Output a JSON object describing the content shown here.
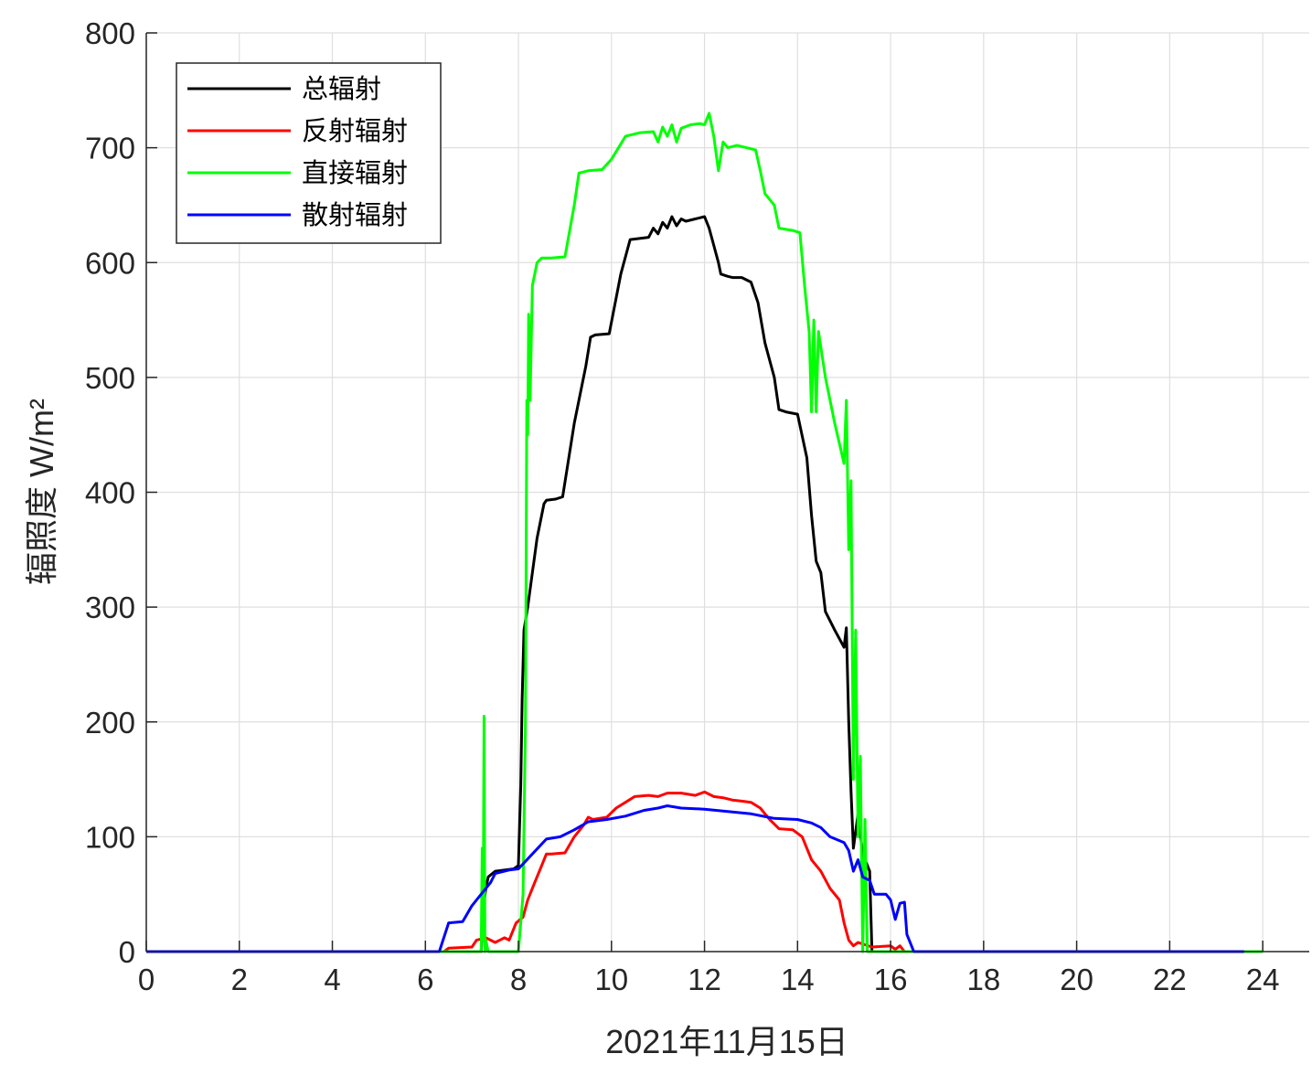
{
  "chart_data": {
    "type": "line",
    "title": "",
    "xlabel": "2021年11月15日",
    "ylabel": "辐照度 W/m²",
    "xlim": [
      0,
      25
    ],
    "ylim": [
      0,
      800
    ],
    "xticks": [
      0,
      2,
      4,
      6,
      8,
      10,
      12,
      14,
      16,
      18,
      20,
      22,
      24
    ],
    "yticks": [
      0,
      100,
      200,
      300,
      400,
      500,
      600,
      700,
      800
    ],
    "grid": true,
    "legend_position": "top-left",
    "series": [
      {
        "name": "总辐射",
        "color": "#000000",
        "points": [
          [
            0,
            0
          ],
          [
            6.3,
            0
          ],
          [
            7.2,
            0
          ],
          [
            7.25,
            40
          ],
          [
            7.3,
            55
          ],
          [
            7.35,
            65
          ],
          [
            7.5,
            70
          ],
          [
            7.9,
            72
          ],
          [
            8.0,
            75
          ],
          [
            8.05,
            145
          ],
          [
            8.08,
            220
          ],
          [
            8.12,
            280
          ],
          [
            8.2,
            300
          ],
          [
            8.4,
            360
          ],
          [
            8.55,
            390
          ],
          [
            8.6,
            393
          ],
          [
            8.8,
            394
          ],
          [
            8.95,
            396
          ],
          [
            9.2,
            460
          ],
          [
            9.45,
            510
          ],
          [
            9.55,
            535
          ],
          [
            9.65,
            537
          ],
          [
            9.95,
            538
          ],
          [
            10.2,
            590
          ],
          [
            10.4,
            620
          ],
          [
            10.6,
            621
          ],
          [
            10.8,
            622
          ],
          [
            10.9,
            630
          ],
          [
            11.0,
            625
          ],
          [
            11.1,
            635
          ],
          [
            11.2,
            630
          ],
          [
            11.3,
            640
          ],
          [
            11.4,
            632
          ],
          [
            11.5,
            638
          ],
          [
            11.6,
            636
          ],
          [
            11.8,
            638
          ],
          [
            12.0,
            640
          ],
          [
            12.1,
            630
          ],
          [
            12.2,
            615
          ],
          [
            12.3,
            600
          ],
          [
            12.35,
            590
          ],
          [
            12.5,
            588
          ],
          [
            12.6,
            587
          ],
          [
            12.8,
            587
          ],
          [
            13.0,
            583
          ],
          [
            13.15,
            565
          ],
          [
            13.3,
            530
          ],
          [
            13.5,
            500
          ],
          [
            13.6,
            472
          ],
          [
            13.75,
            470
          ],
          [
            14.0,
            468
          ],
          [
            14.2,
            430
          ],
          [
            14.3,
            380
          ],
          [
            14.4,
            340
          ],
          [
            14.5,
            330
          ],
          [
            14.6,
            296
          ],
          [
            14.8,
            280
          ],
          [
            15.0,
            265
          ],
          [
            15.05,
            282
          ],
          [
            15.1,
            200
          ],
          [
            15.15,
            140
          ],
          [
            15.2,
            90
          ],
          [
            15.3,
            120
          ],
          [
            15.4,
            85
          ],
          [
            15.55,
            70
          ],
          [
            15.6,
            0
          ],
          [
            24,
            0
          ]
        ]
      },
      {
        "name": "反射辐射",
        "color": "#ff0000",
        "points": [
          [
            0,
            0
          ],
          [
            6.4,
            0
          ],
          [
            6.5,
            3
          ],
          [
            7.0,
            4
          ],
          [
            7.1,
            10
          ],
          [
            7.3,
            12
          ],
          [
            7.5,
            8
          ],
          [
            7.6,
            10
          ],
          [
            7.7,
            12
          ],
          [
            7.8,
            10
          ],
          [
            7.95,
            25
          ],
          [
            8.1,
            30
          ],
          [
            8.2,
            45
          ],
          [
            8.35,
            60
          ],
          [
            8.5,
            75
          ],
          [
            8.6,
            85
          ],
          [
            8.7,
            85
          ],
          [
            9.0,
            86
          ],
          [
            9.2,
            100
          ],
          [
            9.4,
            110
          ],
          [
            9.5,
            117
          ],
          [
            9.6,
            115
          ],
          [
            9.9,
            117
          ],
          [
            10.1,
            125
          ],
          [
            10.3,
            130
          ],
          [
            10.5,
            135
          ],
          [
            10.8,
            136
          ],
          [
            11.0,
            135
          ],
          [
            11.2,
            138
          ],
          [
            11.5,
            138
          ],
          [
            11.8,
            136
          ],
          [
            12.0,
            139
          ],
          [
            12.2,
            135
          ],
          [
            12.4,
            134
          ],
          [
            12.6,
            132
          ],
          [
            12.8,
            131
          ],
          [
            13.0,
            130
          ],
          [
            13.2,
            125
          ],
          [
            13.4,
            115
          ],
          [
            13.6,
            107
          ],
          [
            13.9,
            106
          ],
          [
            14.1,
            100
          ],
          [
            14.3,
            80
          ],
          [
            14.5,
            70
          ],
          [
            14.7,
            55
          ],
          [
            14.9,
            45
          ],
          [
            15.0,
            25
          ],
          [
            15.1,
            10
          ],
          [
            15.2,
            5
          ],
          [
            15.3,
            8
          ],
          [
            15.6,
            4
          ],
          [
            16.0,
            5
          ],
          [
            16.1,
            2
          ],
          [
            16.2,
            5
          ],
          [
            16.3,
            0
          ],
          [
            24,
            0
          ]
        ]
      },
      {
        "name": "直接辐射",
        "color": "#00ff00",
        "points": [
          [
            0,
            0
          ],
          [
            7.2,
            0
          ],
          [
            7.22,
            90
          ],
          [
            7.24,
            10
          ],
          [
            7.26,
            205
          ],
          [
            7.28,
            0
          ],
          [
            7.3,
            10
          ],
          [
            7.35,
            0
          ],
          [
            8.0,
            0
          ],
          [
            8.1,
            50
          ],
          [
            8.15,
            200
          ],
          [
            8.18,
            480
          ],
          [
            8.2,
            450
          ],
          [
            8.22,
            555
          ],
          [
            8.25,
            480
          ],
          [
            8.3,
            580
          ],
          [
            8.4,
            600
          ],
          [
            8.5,
            604
          ],
          [
            8.7,
            604
          ],
          [
            9.0,
            605
          ],
          [
            9.2,
            650
          ],
          [
            9.3,
            678
          ],
          [
            9.5,
            680
          ],
          [
            9.8,
            681
          ],
          [
            10.0,
            690
          ],
          [
            10.3,
            710
          ],
          [
            10.6,
            713
          ],
          [
            10.9,
            714
          ],
          [
            11.0,
            705
          ],
          [
            11.1,
            718
          ],
          [
            11.2,
            710
          ],
          [
            11.3,
            720
          ],
          [
            11.4,
            705
          ],
          [
            11.5,
            717
          ],
          [
            11.7,
            720
          ],
          [
            11.9,
            721
          ],
          [
            12.0,
            720
          ],
          [
            12.1,
            730
          ],
          [
            12.2,
            710
          ],
          [
            12.3,
            680
          ],
          [
            12.4,
            705
          ],
          [
            12.5,
            700
          ],
          [
            12.7,
            702
          ],
          [
            12.9,
            700
          ],
          [
            13.1,
            698
          ],
          [
            13.2,
            680
          ],
          [
            13.3,
            660
          ],
          [
            13.5,
            650
          ],
          [
            13.6,
            630
          ],
          [
            13.9,
            628
          ],
          [
            14.05,
            626
          ],
          [
            14.15,
            580
          ],
          [
            14.25,
            540
          ],
          [
            14.3,
            470
          ],
          [
            14.35,
            550
          ],
          [
            14.4,
            470
          ],
          [
            14.45,
            540
          ],
          [
            14.6,
            500
          ],
          [
            14.8,
            460
          ],
          [
            15.0,
            425
          ],
          [
            15.05,
            480
          ],
          [
            15.1,
            350
          ],
          [
            15.15,
            410
          ],
          [
            15.2,
            150
          ],
          [
            15.25,
            280
          ],
          [
            15.3,
            100
          ],
          [
            15.35,
            170
          ],
          [
            15.4,
            0
          ],
          [
            15.45,
            115
          ],
          [
            15.5,
            0
          ],
          [
            24,
            0
          ]
        ]
      },
      {
        "name": "散射辐射",
        "color": "#0000ff",
        "points": [
          [
            0,
            0
          ],
          [
            6.3,
            0
          ],
          [
            6.5,
            25
          ],
          [
            6.8,
            26
          ],
          [
            7.0,
            40
          ],
          [
            7.2,
            50
          ],
          [
            7.4,
            60
          ],
          [
            7.5,
            68
          ],
          [
            7.8,
            71
          ],
          [
            8.0,
            72
          ],
          [
            8.3,
            85
          ],
          [
            8.6,
            98
          ],
          [
            8.9,
            100
          ],
          [
            9.2,
            106
          ],
          [
            9.5,
            113
          ],
          [
            9.9,
            115
          ],
          [
            10.3,
            118
          ],
          [
            10.7,
            123
          ],
          [
            11.0,
            125
          ],
          [
            11.2,
            127
          ],
          [
            11.5,
            125
          ],
          [
            12.0,
            124
          ],
          [
            12.5,
            122
          ],
          [
            13.0,
            120
          ],
          [
            13.5,
            116
          ],
          [
            14.0,
            115
          ],
          [
            14.3,
            112
          ],
          [
            14.5,
            108
          ],
          [
            14.7,
            100
          ],
          [
            15.0,
            95
          ],
          [
            15.1,
            88
          ],
          [
            15.2,
            70
          ],
          [
            15.3,
            80
          ],
          [
            15.4,
            65
          ],
          [
            15.55,
            62
          ],
          [
            15.65,
            50
          ],
          [
            15.9,
            50
          ],
          [
            16.0,
            45
          ],
          [
            16.1,
            28
          ],
          [
            16.2,
            42
          ],
          [
            16.3,
            43
          ],
          [
            16.35,
            15
          ],
          [
            16.5,
            0
          ],
          [
            23.6,
            0
          ]
        ]
      }
    ]
  }
}
